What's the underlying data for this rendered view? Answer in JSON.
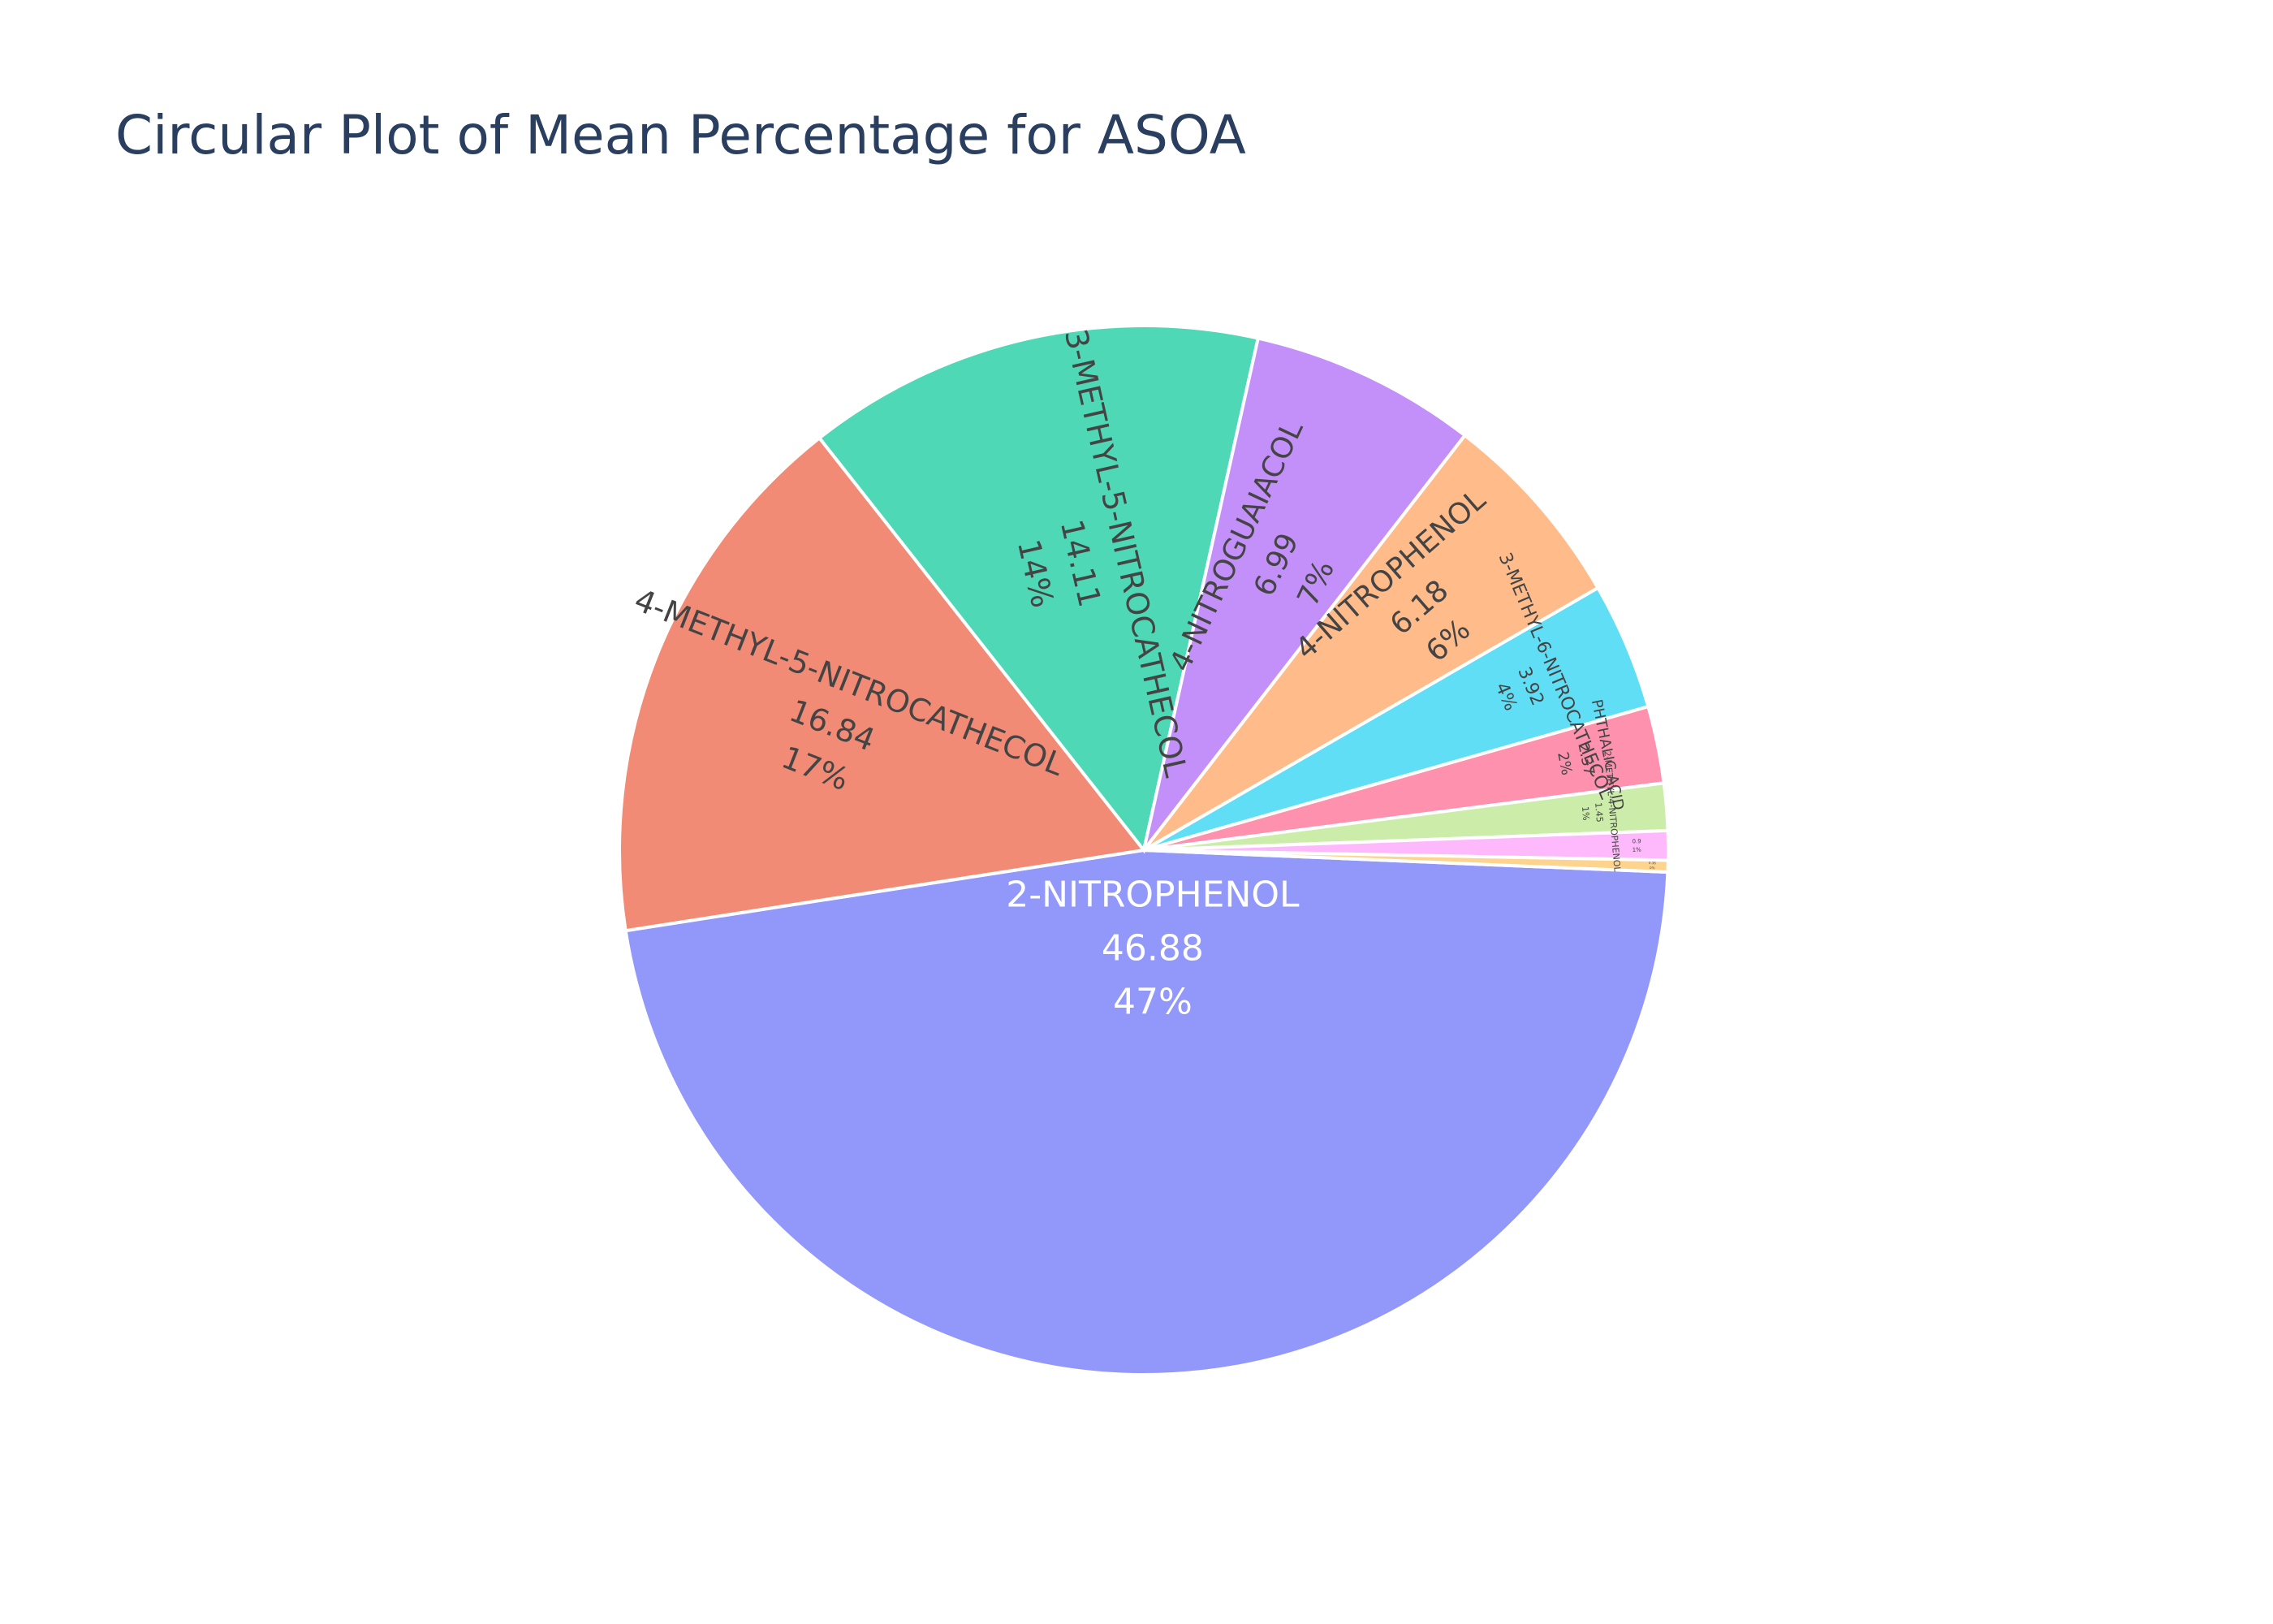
{
  "chart_data": {
    "type": "pie",
    "title": "Circular Plot of Mean Percentage for ASOA",
    "slices": [
      {
        "label": "2-NITROPHENOL",
        "value": 46.88,
        "percent": "47%",
        "color": "#9198fa"
      },
      {
        "label": "4-METHYL-5-NITROCATHECOL",
        "value": 16.84,
        "percent": "17%",
        "color": "#f28b75"
      },
      {
        "label": "3-METHYL-5-NITROCATHECOL",
        "value": 14.11,
        "percent": "14%",
        "color": "#4ed8b5"
      },
      {
        "label": "4-NITROGUAIACOL",
        "value": 6.99,
        "percent": "7%",
        "color": "#c290f8"
      },
      {
        "label": "4-NITROPHENOL",
        "value": 6.18,
        "percent": "6%",
        "color": "#ffbc8a"
      },
      {
        "label": "3-METHYL-6-NITROCATHECOL",
        "value": 3.92,
        "percent": "4%",
        "color": "#5fdef5"
      },
      {
        "label": "PHTHALIC ACID",
        "value": 2.37,
        "percent": "2%",
        "color": "#fe91ad"
      },
      {
        "label": "2-METHYL-4-NITROPHENOL",
        "value": 1.45,
        "percent": "1%",
        "color": "#ccedaa"
      },
      {
        "label": "",
        "value": 0.9,
        "percent": "1%",
        "color": "#feb8fc"
      },
      {
        "label": "",
        "value": 0.36,
        "percent": "0%",
        "color": "#fdd38d"
      }
    ]
  }
}
